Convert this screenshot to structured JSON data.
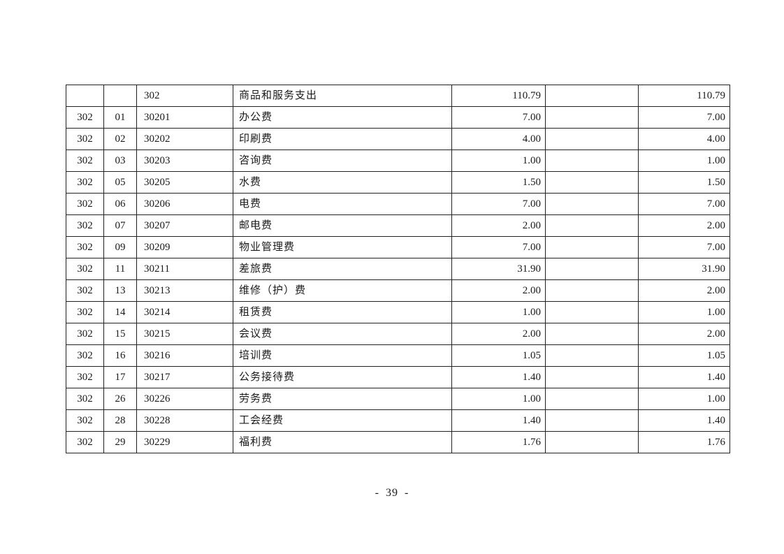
{
  "page": {
    "background": "#ffffff",
    "footer_page_number": "- 39 -"
  },
  "colors": {
    "table_border": "#222222",
    "text": "#1a1a1a"
  },
  "table": {
    "column_names": [
      "cell-category-code",
      "cell-sub-code",
      "cell-economic-code",
      "cell-subject-name",
      "cell-amount-general-budget",
      "cell-amount-middle",
      "cell-amount-total"
    ],
    "rows": [
      [
        "",
        "",
        "302",
        "商品和服务支出",
        "110.79",
        "",
        "110.79"
      ],
      [
        "302",
        "01",
        "30201",
        "办公费",
        "7.00",
        "",
        "7.00"
      ],
      [
        "302",
        "02",
        "30202",
        "印刷费",
        "4.00",
        "",
        "4.00"
      ],
      [
        "302",
        "03",
        "30203",
        "咨询费",
        "1.00",
        "",
        "1.00"
      ],
      [
        "302",
        "05",
        "30205",
        "水费",
        "1.50",
        "",
        "1.50"
      ],
      [
        "302",
        "06",
        "30206",
        "电费",
        "7.00",
        "",
        "7.00"
      ],
      [
        "302",
        "07",
        "30207",
        "邮电费",
        "2.00",
        "",
        "2.00"
      ],
      [
        "302",
        "09",
        "30209",
        "物业管理费",
        "7.00",
        "",
        "7.00"
      ],
      [
        "302",
        "11",
        "30211",
        "差旅费",
        "31.90",
        "",
        "31.90"
      ],
      [
        "302",
        "13",
        "30213",
        "维修（护）费",
        "2.00",
        "",
        "2.00"
      ],
      [
        "302",
        "14",
        "30214",
        "租赁费",
        "1.00",
        "",
        "1.00"
      ],
      [
        "302",
        "15",
        "30215",
        "会议费",
        "2.00",
        "",
        "2.00"
      ],
      [
        "302",
        "16",
        "30216",
        "培训费",
        "1.05",
        "",
        "1.05"
      ],
      [
        "302",
        "17",
        "30217",
        "公务接待费",
        "1.40",
        "",
        "1.40"
      ],
      [
        "302",
        "26",
        "30226",
        "劳务费",
        "1.00",
        "",
        "1.00"
      ],
      [
        "302",
        "28",
        "30228",
        "工会经费",
        "1.40",
        "",
        "1.40"
      ],
      [
        "302",
        "29",
        "30229",
        "福利费",
        "1.76",
        "",
        "1.76"
      ]
    ]
  }
}
